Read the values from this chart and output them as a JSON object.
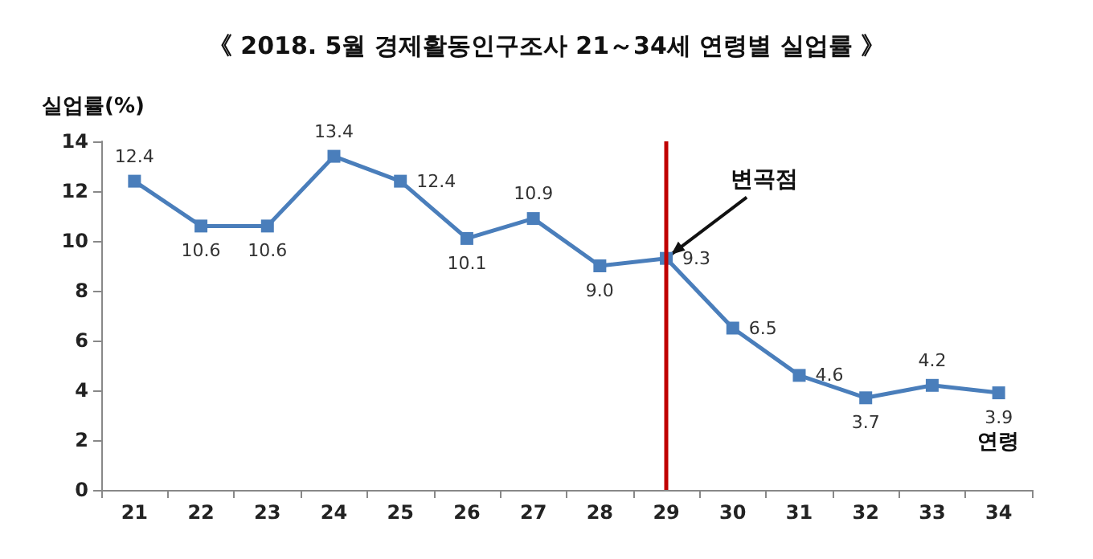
{
  "chart_data": {
    "type": "line",
    "title": "《 2018. 5월 경제활동인구조사 21～34세 연령별 실업률 》",
    "ylabel": "실업률(%)",
    "xlabel": "연령",
    "categories": [
      "21",
      "22",
      "23",
      "24",
      "25",
      "26",
      "27",
      "28",
      "29",
      "30",
      "31",
      "32",
      "33",
      "34"
    ],
    "series": [
      {
        "color": "#4a7ebb",
        "values": [
          12.4,
          10.6,
          10.6,
          13.4,
          12.4,
          10.1,
          10.9,
          9.0,
          9.3,
          6.5,
          4.6,
          3.7,
          4.2,
          3.9
        ],
        "value_labels": [
          "12.4",
          "10.6",
          "10.6",
          "13.4",
          "12.4",
          "10.1",
          "10.9",
          "9.0",
          "9.3",
          "6.5",
          "4.6",
          "3.7",
          "4.2",
          "3.9"
        ]
      }
    ],
    "ylim": [
      0,
      14
    ],
    "yticks": [
      0,
      2,
      4,
      6,
      8,
      10,
      12,
      14
    ],
    "grid": false,
    "marker": "square",
    "line_style": "solid",
    "ref_lines": [
      {
        "axis": "x",
        "value": "29",
        "color": "#c00000"
      }
    ],
    "annotations": [
      {
        "text": "변곡점",
        "x": "29",
        "y": 9.3
      }
    ]
  }
}
